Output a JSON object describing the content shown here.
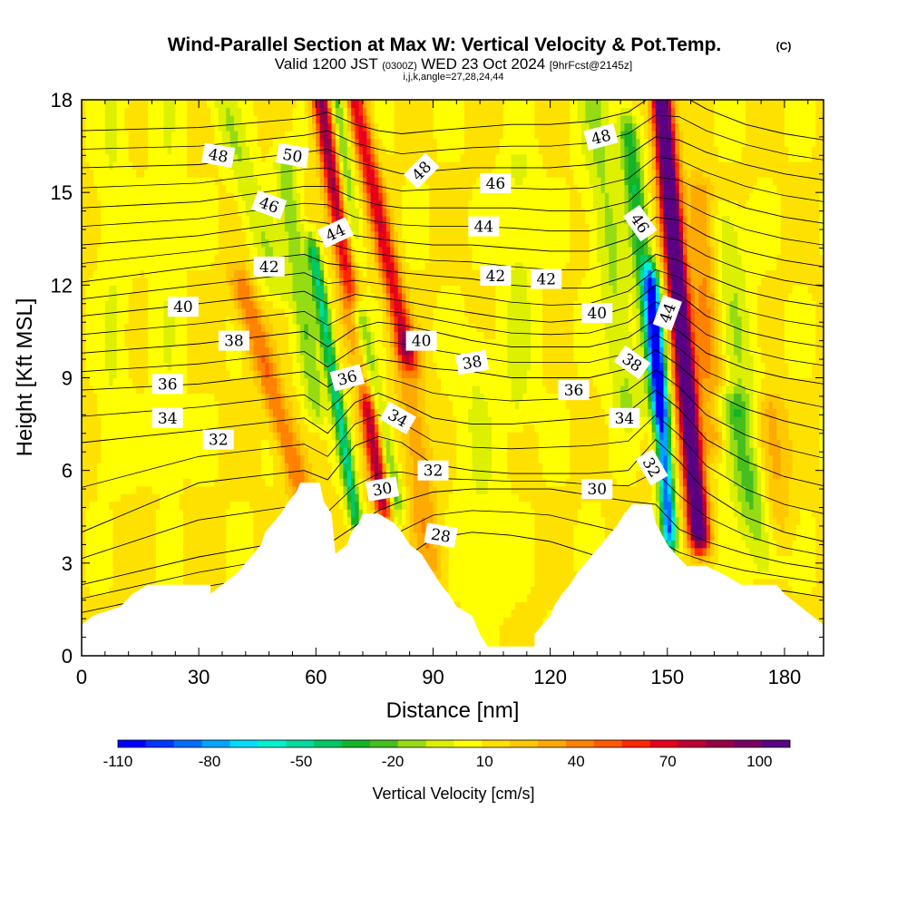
{
  "chart_data": {
    "type": "heatmap",
    "title": "Wind-Parallel Section at Max W: Vertical Velocity & Pot.Temp.",
    "title_mark": "(C)",
    "subtitle": {
      "valid": "Valid 1200 JST",
      "utc": "(0300Z)",
      "date": "WED 23 Oct 2024",
      "forecast": "[9hrFcst@2145z]"
    },
    "indices_line": "i,j,k,angle=27,28,24,44",
    "xlabel": "Distance [nm]",
    "ylabel": "Height [Kft MSL]",
    "xlim": [
      0,
      190
    ],
    "ylim": [
      0,
      18
    ],
    "x_ticks": [
      "0",
      "30",
      "60",
      "90",
      "120",
      "150",
      "180"
    ],
    "y_ticks": [
      "0",
      "3",
      "6",
      "9",
      "12",
      "15",
      "18"
    ],
    "colorbar": {
      "label": "Vertical Velocity [cm/s]",
      "range": [
        -110,
        110
      ],
      "tick_labels": [
        "-110",
        "-80",
        "-50",
        "-20",
        "10",
        "40",
        "70",
        "100"
      ],
      "colors": [
        "#0000ff",
        "#0037ff",
        "#006eff",
        "#00a5ff",
        "#00dcff",
        "#00f0d2",
        "#00dca0",
        "#00c864",
        "#14b428",
        "#46be1e",
        "#96dc14",
        "#dcf000",
        "#ffff00",
        "#ffe100",
        "#ffc800",
        "#ffaa00",
        "#ff8200",
        "#ff5a00",
        "#ff2800",
        "#e6001e",
        "#be0032",
        "#960046",
        "#780064",
        "#5a0082"
      ]
    },
    "terrain_kft": [
      [
        0,
        1.0
      ],
      [
        3,
        1.3
      ],
      [
        10,
        1.6
      ],
      [
        13,
        2.0
      ],
      [
        17,
        2.3
      ],
      [
        33,
        2.3
      ],
      [
        33,
        2.0
      ],
      [
        36,
        2.3
      ],
      [
        40,
        2.7
      ],
      [
        42,
        3.0
      ],
      [
        44,
        3.3
      ],
      [
        46,
        3.6
      ],
      [
        47,
        4.0
      ],
      [
        49,
        4.3
      ],
      [
        51,
        4.6
      ],
      [
        53,
        5.0
      ],
      [
        55,
        5.3
      ],
      [
        56,
        5.6
      ],
      [
        61,
        5.6
      ],
      [
        62,
        5.0
      ],
      [
        64,
        4.6
      ],
      [
        65,
        3.3
      ],
      [
        68,
        3.6
      ],
      [
        69,
        4.0
      ],
      [
        71,
        4.3
      ],
      [
        72,
        4.6
      ],
      [
        76,
        4.6
      ],
      [
        80,
        4.3
      ],
      [
        82,
        4.0
      ],
      [
        84,
        3.6
      ],
      [
        87,
        3.3
      ],
      [
        90,
        2.7
      ],
      [
        92,
        2.3
      ],
      [
        94,
        2.0
      ],
      [
        96,
        1.6
      ],
      [
        100,
        1.3
      ],
      [
        102,
        0.7
      ],
      [
        104,
        0.3
      ],
      [
        116,
        0.3
      ],
      [
        116,
        0.7
      ],
      [
        118,
        1.0
      ],
      [
        120,
        1.3
      ],
      [
        121,
        1.6
      ],
      [
        123,
        2.0
      ],
      [
        125,
        2.3
      ],
      [
        127,
        2.7
      ],
      [
        129,
        3.0
      ],
      [
        131,
        3.3
      ],
      [
        133,
        3.6
      ],
      [
        135,
        3.9
      ],
      [
        137,
        4.2
      ],
      [
        139,
        4.6
      ],
      [
        141,
        4.9
      ],
      [
        146,
        4.9
      ],
      [
        147,
        4.3
      ],
      [
        150,
        3.6
      ],
      [
        152,
        3.3
      ],
      [
        155,
        2.9
      ],
      [
        160,
        2.9
      ],
      [
        165,
        2.6
      ],
      [
        169,
        2.3
      ],
      [
        178,
        2.3
      ],
      [
        180,
        2.0
      ],
      [
        184,
        1.6
      ],
      [
        187,
        1.3
      ],
      [
        190,
        1.0
      ]
    ],
    "wbands": [
      {
        "x0": 61.5,
        "x1": 77.5,
        "w": 90,
        "sigma": 1.8,
        "ylo": 5.0,
        "yhi": 18
      },
      {
        "x0": 70,
        "x1": 83,
        "w": 60,
        "sigma": 1.8,
        "ylo": 10,
        "yhi": 18
      },
      {
        "x0": 65,
        "x1": 72,
        "w": -45,
        "sigma": 1.7,
        "ylo": 9,
        "yhi": 18
      },
      {
        "x0": 59.5,
        "x1": 70,
        "w": -55,
        "sigma": 1.2,
        "ylo": 4.5,
        "yhi": 13
      },
      {
        "x0": 71,
        "x1": 80,
        "w": -55,
        "sigma": 1.6,
        "ylo": 5,
        "yhi": 11
      },
      {
        "x0": 148.5,
        "x1": 158,
        "w": 125,
        "sigma": 1.8,
        "ylo": 4.0,
        "yhi": 18
      },
      {
        "x0": 146,
        "x1": 150.5,
        "w": -100,
        "sigma": 1.3,
        "ylo": 4.0,
        "yhi": 12
      },
      {
        "x0": 140,
        "x1": 148,
        "w": -45,
        "sigma": 1.8,
        "ylo": 8,
        "yhi": 17
      },
      {
        "x0": 41,
        "x1": 57,
        "w": 35,
        "sigma": 2.2,
        "ylo": 5,
        "yhi": 12
      },
      {
        "x0": 52,
        "x1": 60,
        "w": -25,
        "sigma": 2.0,
        "ylo": 8,
        "yhi": 16
      },
      {
        "x0": 36,
        "x1": 50,
        "w": -18,
        "sigma": 2.5,
        "ylo": 12,
        "yhi": 18
      },
      {
        "x0": 83,
        "x1": 89,
        "w": 25,
        "sigma": 2.5,
        "ylo": 3,
        "yhi": 10
      },
      {
        "x0": 131,
        "x1": 140,
        "w": -20,
        "sigma": 3.0,
        "ylo": 8,
        "yhi": 18
      },
      {
        "x0": 166,
        "x1": 177,
        "w": -35,
        "sigma": 3.5,
        "ylo": 2.8,
        "yhi": 8
      },
      {
        "x0": 158,
        "x1": 162,
        "w": 28,
        "sigma": 2.5,
        "ylo": 7,
        "yhi": 15
      },
      {
        "x0": 165,
        "x1": 170,
        "w": -18,
        "sigma": 3.0,
        "ylo": 8,
        "yhi": 14
      },
      {
        "x0": 176,
        "x1": 178,
        "w": 25,
        "sigma": 3.0,
        "ylo": 2.5,
        "yhi": 8
      },
      {
        "x0": 112,
        "x1": 112,
        "w": -12,
        "sigma": 3.0,
        "ylo": 8,
        "yhi": 16
      },
      {
        "x0": 100,
        "x1": 104,
        "w": -10,
        "sigma": 4.0,
        "ylo": 2,
        "yhi": 10
      },
      {
        "x0": 8,
        "x1": 8,
        "w": -10,
        "sigma": 2.5,
        "ylo": 6,
        "yhi": 18
      },
      {
        "x0": 22,
        "x1": 22,
        "w": -8,
        "sigma": 2.5,
        "ylo": 6,
        "yhi": 18
      }
    ],
    "theta_levels": [
      {
        "v": 28,
        "x": [
          0,
          30,
          57,
          63,
          70,
          76,
          82,
          90,
          100,
          110,
          120,
          130,
          140,
          147,
          153,
          160,
          170,
          180,
          190
        ],
        "y": [
          1.4,
          2.2,
          2.8,
          2.4,
          2.4,
          2.6,
          3.1,
          3.8,
          4.0,
          3.9,
          3.7,
          3.3,
          2.9,
          2.7,
          2.6,
          2.4,
          2.2,
          2.1,
          1.9
        ]
      },
      {
        "v": 30,
        "x": [
          0,
          30,
          57,
          63,
          70,
          76,
          82,
          90,
          100,
          110,
          120,
          130,
          140,
          147,
          153,
          160,
          170,
          180,
          190
        ],
        "y": [
          2.3,
          3.2,
          3.8,
          3.6,
          4.2,
          4.7,
          5.0,
          5.3,
          5.4,
          5.4,
          5.4,
          5.2,
          5.0,
          4.9,
          4.1,
          3.7,
          3.3,
          3.0,
          2.8
        ]
      },
      {
        "v": 32,
        "x": [
          0,
          30,
          57,
          63,
          70,
          76,
          82,
          90,
          100,
          110,
          120,
          130,
          140,
          147,
          153,
          160,
          170,
          180,
          190
        ],
        "y": [
          4.0,
          5.6,
          6.0,
          5.7,
          6.8,
          7.1,
          6.9,
          6.2,
          6.0,
          5.9,
          5.9,
          5.9,
          6.0,
          7.0,
          6.3,
          5.3,
          4.5,
          4.0,
          3.7
        ]
      },
      {
        "v": 34,
        "x": [
          0,
          30,
          57,
          63,
          70,
          76,
          82,
          90,
          100,
          110,
          120,
          130,
          140,
          147,
          153,
          160,
          170,
          180,
          190
        ],
        "y": [
          6.9,
          7.3,
          7.7,
          7.2,
          8.2,
          8.5,
          8.2,
          7.7,
          7.5,
          7.5,
          7.6,
          7.7,
          7.9,
          8.6,
          8.0,
          7.0,
          6.3,
          5.8,
          5.5
        ]
      },
      {
        "v": 36,
        "x": [
          0,
          30,
          57,
          63,
          70,
          76,
          82,
          90,
          100,
          110,
          120,
          130,
          140,
          147,
          153,
          160,
          170,
          180,
          190
        ],
        "y": [
          8.6,
          8.8,
          9.2,
          8.7,
          9.3,
          9.6,
          9.5,
          9.3,
          9.2,
          9.0,
          9.0,
          9.0,
          9.3,
          9.9,
          9.4,
          8.6,
          8.0,
          7.6,
          7.3
        ]
      },
      {
        "v": 38,
        "x": [
          0,
          30,
          57,
          63,
          70,
          76,
          82,
          90,
          100,
          110,
          120,
          130,
          140,
          147,
          153,
          160,
          170,
          180,
          190
        ],
        "y": [
          9.8,
          10.1,
          10.5,
          10.0,
          10.6,
          10.8,
          10.7,
          10.5,
          10.2,
          10.0,
          10.0,
          10.0,
          10.3,
          10.9,
          10.5,
          9.8,
          9.3,
          9.0,
          8.8
        ]
      },
      {
        "v": 40,
        "x": [
          0,
          30,
          57,
          63,
          70,
          76,
          82,
          90,
          100,
          110,
          120,
          130,
          140,
          147,
          153,
          160,
          170,
          180,
          190
        ],
        "y": [
          11.0,
          11.4,
          11.8,
          11.4,
          11.7,
          11.6,
          11.5,
          11.3,
          11.1,
          10.9,
          10.8,
          10.9,
          11.3,
          12.0,
          11.7,
          11.0,
          10.5,
          10.2,
          10.0
        ]
      },
      {
        "v": 42,
        "x": [
          0,
          30,
          57,
          63,
          70,
          76,
          82,
          90,
          100,
          110,
          120,
          130,
          140,
          147,
          153,
          160,
          170,
          180,
          190
        ],
        "y": [
          12.1,
          12.6,
          13.0,
          12.7,
          12.6,
          12.5,
          12.4,
          12.3,
          12.2,
          12.0,
          11.9,
          11.9,
          12.3,
          13.0,
          12.8,
          12.3,
          11.8,
          11.5,
          11.3
        ]
      },
      {
        "v": 44,
        "x": [
          0,
          30,
          57,
          63,
          70,
          76,
          82,
          90,
          100,
          110,
          120,
          130,
          140,
          147,
          153,
          160,
          170,
          180,
          190
        ],
        "y": [
          13.3,
          13.6,
          14.1,
          14.0,
          13.6,
          13.5,
          13.4,
          13.3,
          13.3,
          13.2,
          13.1,
          13.1,
          13.5,
          14.2,
          14.1,
          13.6,
          13.1,
          12.8,
          12.6
        ]
      },
      {
        "v": 46,
        "x": [
          0,
          30,
          57,
          63,
          70,
          76,
          82,
          90,
          100,
          110,
          120,
          130,
          140,
          147,
          153,
          160,
          170,
          180,
          190
        ],
        "y": [
          14.5,
          14.7,
          15.2,
          15.2,
          14.8,
          14.6,
          14.5,
          14.5,
          14.5,
          14.5,
          14.4,
          14.4,
          14.7,
          15.5,
          15.4,
          15.0,
          14.5,
          14.2,
          14.0
        ]
      },
      {
        "v": 48,
        "x": [
          0,
          30,
          57,
          63,
          70,
          76,
          82,
          90,
          100,
          110,
          120,
          130,
          140,
          147,
          153,
          160,
          170,
          180,
          190
        ],
        "y": [
          15.8,
          15.9,
          16.3,
          16.4,
          16.0,
          15.8,
          15.6,
          15.7,
          15.8,
          15.8,
          15.8,
          15.9,
          16.2,
          16.8,
          16.7,
          16.3,
          15.9,
          15.6,
          15.4
        ]
      },
      {
        "v": 50,
        "x": [
          0,
          30,
          57,
          63,
          70,
          76,
          82,
          90,
          100,
          110,
          120,
          130,
          140,
          147,
          153,
          160,
          170,
          180,
          190
        ],
        "y": [
          17.0,
          17.1,
          17.4,
          17.6,
          17.2,
          17.0,
          16.9,
          17.0,
          17.1,
          17.2,
          17.2,
          17.3,
          17.6,
          18.2,
          18.2,
          17.7,
          17.2,
          16.9,
          16.7
        ]
      }
    ],
    "contour_labels": [
      {
        "text": "48",
        "x": 35,
        "y": 16.2,
        "angle": 10
      },
      {
        "text": "50",
        "x": 54,
        "y": 16.2,
        "angle": 10
      },
      {
        "text": "46",
        "x": 48,
        "y": 14.6,
        "angle": 20
      },
      {
        "text": "44",
        "x": 65,
        "y": 13.7,
        "angle": -25
      },
      {
        "text": "42",
        "x": 48,
        "y": 12.6,
        "angle": 0
      },
      {
        "text": "48",
        "x": 87,
        "y": 15.7,
        "angle": -45
      },
      {
        "text": "46",
        "x": 106,
        "y": 15.3,
        "angle": 0
      },
      {
        "text": "44",
        "x": 103,
        "y": 13.9,
        "angle": 0
      },
      {
        "text": "42",
        "x": 106,
        "y": 12.3,
        "angle": 0
      },
      {
        "text": "42",
        "x": 119,
        "y": 12.2,
        "angle": 0
      },
      {
        "text": "48",
        "x": 133,
        "y": 16.8,
        "angle": -15
      },
      {
        "text": "46",
        "x": 143,
        "y": 14.0,
        "angle": 55
      },
      {
        "text": "44",
        "x": 150,
        "y": 11.1,
        "angle": -70
      },
      {
        "text": "40",
        "x": 26,
        "y": 11.3,
        "angle": 0
      },
      {
        "text": "38",
        "x": 39,
        "y": 10.2,
        "angle": 0
      },
      {
        "text": "40",
        "x": 87,
        "y": 10.2,
        "angle": 0
      },
      {
        "text": "38",
        "x": 100,
        "y": 9.5,
        "angle": -10
      },
      {
        "text": "40",
        "x": 132,
        "y": 11.1,
        "angle": 0
      },
      {
        "text": "38",
        "x": 141,
        "y": 9.5,
        "angle": 35
      },
      {
        "text": "36",
        "x": 22,
        "y": 8.8,
        "angle": 0
      },
      {
        "text": "36",
        "x": 68,
        "y": 9.0,
        "angle": -15
      },
      {
        "text": "36",
        "x": 126,
        "y": 8.6,
        "angle": 0
      },
      {
        "text": "34",
        "x": 22,
        "y": 7.7,
        "angle": 0
      },
      {
        "text": "34",
        "x": 81,
        "y": 7.7,
        "angle": 30
      },
      {
        "text": "34",
        "x": 139,
        "y": 7.7,
        "angle": 0
      },
      {
        "text": "32",
        "x": 35,
        "y": 7.0,
        "angle": 0
      },
      {
        "text": "32",
        "x": 90,
        "y": 6.0,
        "angle": 0
      },
      {
        "text": "32",
        "x": 146,
        "y": 6.1,
        "angle": 60
      },
      {
        "text": "30",
        "x": 77,
        "y": 5.4,
        "angle": -10
      },
      {
        "text": "30",
        "x": 132,
        "y": 5.4,
        "angle": 0
      },
      {
        "text": "28",
        "x": 92,
        "y": 3.9,
        "angle": 10
      }
    ]
  }
}
